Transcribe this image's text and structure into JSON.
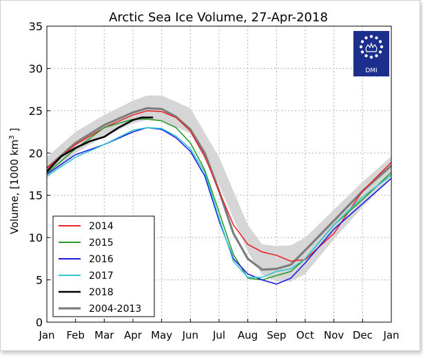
{
  "chart_data": {
    "type": "line",
    "title": "Arctic Sea Ice Volume, 27-Apr-2018",
    "ylabel_prefix": "Volume, [1000 km",
    "ylabel_sup": "3",
    "ylabel_suffix": " ]",
    "xlabel": "",
    "ylim": [
      0,
      35
    ],
    "xlim": [
      0,
      12
    ],
    "yticks": [
      0,
      5,
      10,
      15,
      20,
      25,
      30,
      35
    ],
    "month_labels": [
      "Jan",
      "Feb",
      "Mar",
      "Apr",
      "May",
      "Jun",
      "Jul",
      "Aug",
      "Sep",
      "Oct",
      "Nov",
      "Dec",
      "Jan"
    ],
    "grid": true,
    "legend_position": "lower-left",
    "logo_text": "DMI",
    "band": {
      "x": [
        0,
        1,
        2,
        3,
        3.5,
        4,
        5,
        6,
        7,
        7.5,
        8,
        8.5,
        9,
        10,
        11,
        12
      ],
      "upper": [
        19.5,
        22.5,
        24.5,
        26.2,
        26.8,
        26.8,
        25.3,
        19.5,
        11.5,
        9.2,
        9.0,
        9.1,
        10.0,
        13.3,
        16.6,
        19.6
      ],
      "lower": [
        17.0,
        20.0,
        22.0,
        23.5,
        23.9,
        23.8,
        22.3,
        16.2,
        8.3,
        5.6,
        4.8,
        4.8,
        5.7,
        9.8,
        13.6,
        17.2
      ]
    },
    "series": [
      {
        "name": "2014",
        "color": "#e8262b",
        "width": 1.6,
        "x": [
          0,
          1,
          2,
          3,
          3.5,
          4,
          4.5,
          5,
          5.5,
          6,
          6.5,
          7,
          7.5,
          8,
          8.5,
          9,
          10,
          11,
          12
        ],
        "y": [
          18.2,
          21.0,
          23.0,
          24.5,
          25.0,
          24.9,
          24.2,
          22.6,
          19.6,
          15.5,
          11.5,
          9.2,
          8.3,
          7.9,
          7.2,
          7.4,
          10.5,
          15.5,
          18.9
        ]
      },
      {
        "name": "2015",
        "color": "#2a9b2a",
        "width": 1.6,
        "x": [
          0,
          1,
          2,
          3,
          3.5,
          4,
          4.5,
          5,
          5.5,
          6,
          6.5,
          7,
          7.5,
          8,
          8.5,
          9,
          10,
          11,
          12
        ],
        "y": [
          17.6,
          20.5,
          23.0,
          24.0,
          24.0,
          23.8,
          23.0,
          21.2,
          18.0,
          13.0,
          8.0,
          5.2,
          5.0,
          5.5,
          6.0,
          7.5,
          11.5,
          14.5,
          17.7
        ]
      },
      {
        "name": "2016",
        "color": "#1c1ce6",
        "width": 1.6,
        "x": [
          0,
          1,
          2,
          3,
          3.5,
          4,
          4.5,
          5,
          5.5,
          6,
          6.5,
          7,
          7.5,
          8,
          8.5,
          9,
          10,
          11,
          12
        ],
        "y": [
          17.5,
          19.8,
          21.0,
          22.5,
          23.0,
          22.8,
          21.8,
          20.2,
          17.3,
          12.0,
          7.5,
          5.7,
          5.0,
          4.5,
          5.2,
          7.0,
          11.0,
          14.0,
          17.0
        ]
      },
      {
        "name": "2017",
        "color": "#2ec6d0",
        "width": 1.6,
        "x": [
          0,
          1,
          2,
          3,
          3.5,
          4,
          4.5,
          5,
          5.5,
          6,
          6.5,
          7,
          7.5,
          8,
          8.5,
          9,
          10,
          11,
          12
        ],
        "y": [
          17.3,
          19.5,
          21.0,
          22.7,
          23.0,
          22.9,
          22.0,
          20.5,
          17.7,
          12.3,
          7.2,
          5.3,
          5.3,
          6.0,
          6.3,
          7.5,
          11.5,
          14.8,
          17.4
        ]
      },
      {
        "name": "2018",
        "color": "#000000",
        "width": 2.6,
        "x": [
          0,
          0.5,
          1,
          1.5,
          2,
          2.5,
          3,
          3.3,
          3.7
        ],
        "y": [
          17.8,
          19.6,
          20.6,
          21.4,
          21.9,
          23.0,
          23.9,
          24.2,
          24.2
        ]
      },
      {
        "name": "2004-2013",
        "color": "#7d7d7d",
        "width": 3.2,
        "x": [
          0,
          1,
          2,
          3,
          3.5,
          4,
          4.5,
          5,
          5.5,
          6,
          6.5,
          7,
          7.5,
          8,
          8.5,
          9,
          10,
          11,
          12
        ],
        "y": [
          18.2,
          21.2,
          23.3,
          24.8,
          25.3,
          25.2,
          24.3,
          22.8,
          20.0,
          15.5,
          10.5,
          7.5,
          6.2,
          6.3,
          6.8,
          8.5,
          12.0,
          15.5,
          18.5
        ]
      }
    ]
  }
}
